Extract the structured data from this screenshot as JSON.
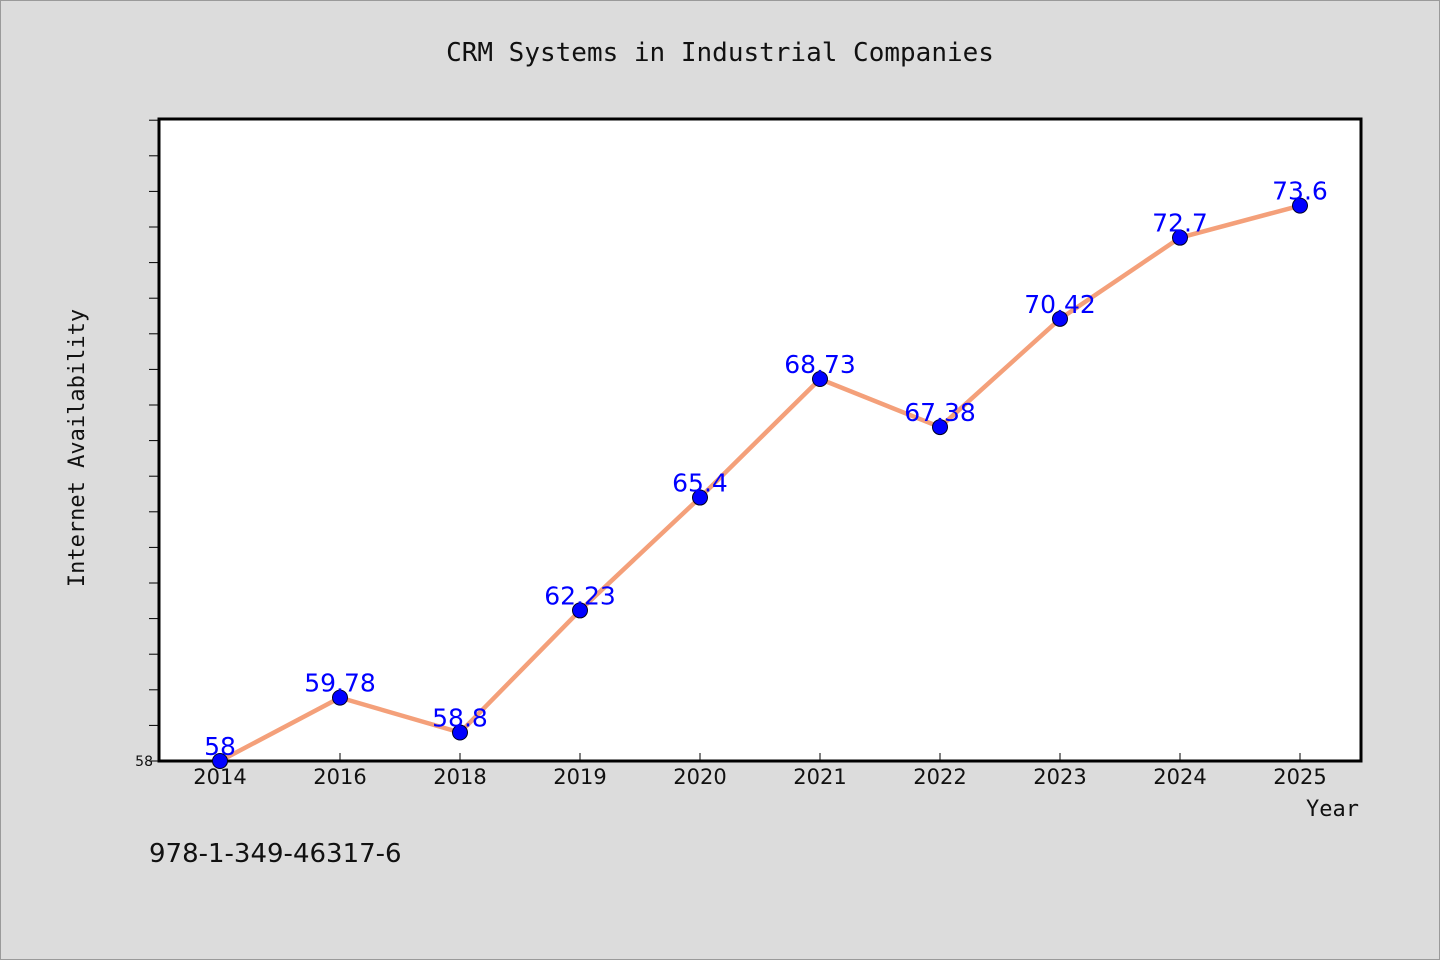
{
  "chart_data": {
    "type": "line",
    "title": "CRM Systems in Industrial Companies",
    "xlabel": "Year",
    "ylabel": "Internet Availability",
    "categories": [
      "2014",
      "2016",
      "2018",
      "2019",
      "2020",
      "2021",
      "2022",
      "2023",
      "2024",
      "2025"
    ],
    "series": [
      {
        "values": [
          58,
          59.78,
          58.8,
          62.23,
          65.4,
          68.73,
          67.38,
          70.42,
          72.7,
          73.6
        ],
        "data_labels": [
          "58",
          "59.78",
          "58.8",
          "62.23",
          "65.4",
          "68.73",
          "67.38",
          "70.42",
          "72.7",
          "73.6"
        ],
        "line_color": "#f4a07a",
        "marker_color": "#0000ff"
      }
    ],
    "ylim": [
      58,
      76
    ],
    "y_tick_labels": [
      "58"
    ],
    "grid": false,
    "legend": "none",
    "plot_background": "#ffffff",
    "figure_background": "#dcdcdc"
  },
  "footer_text": "978-1-349-46317-6"
}
